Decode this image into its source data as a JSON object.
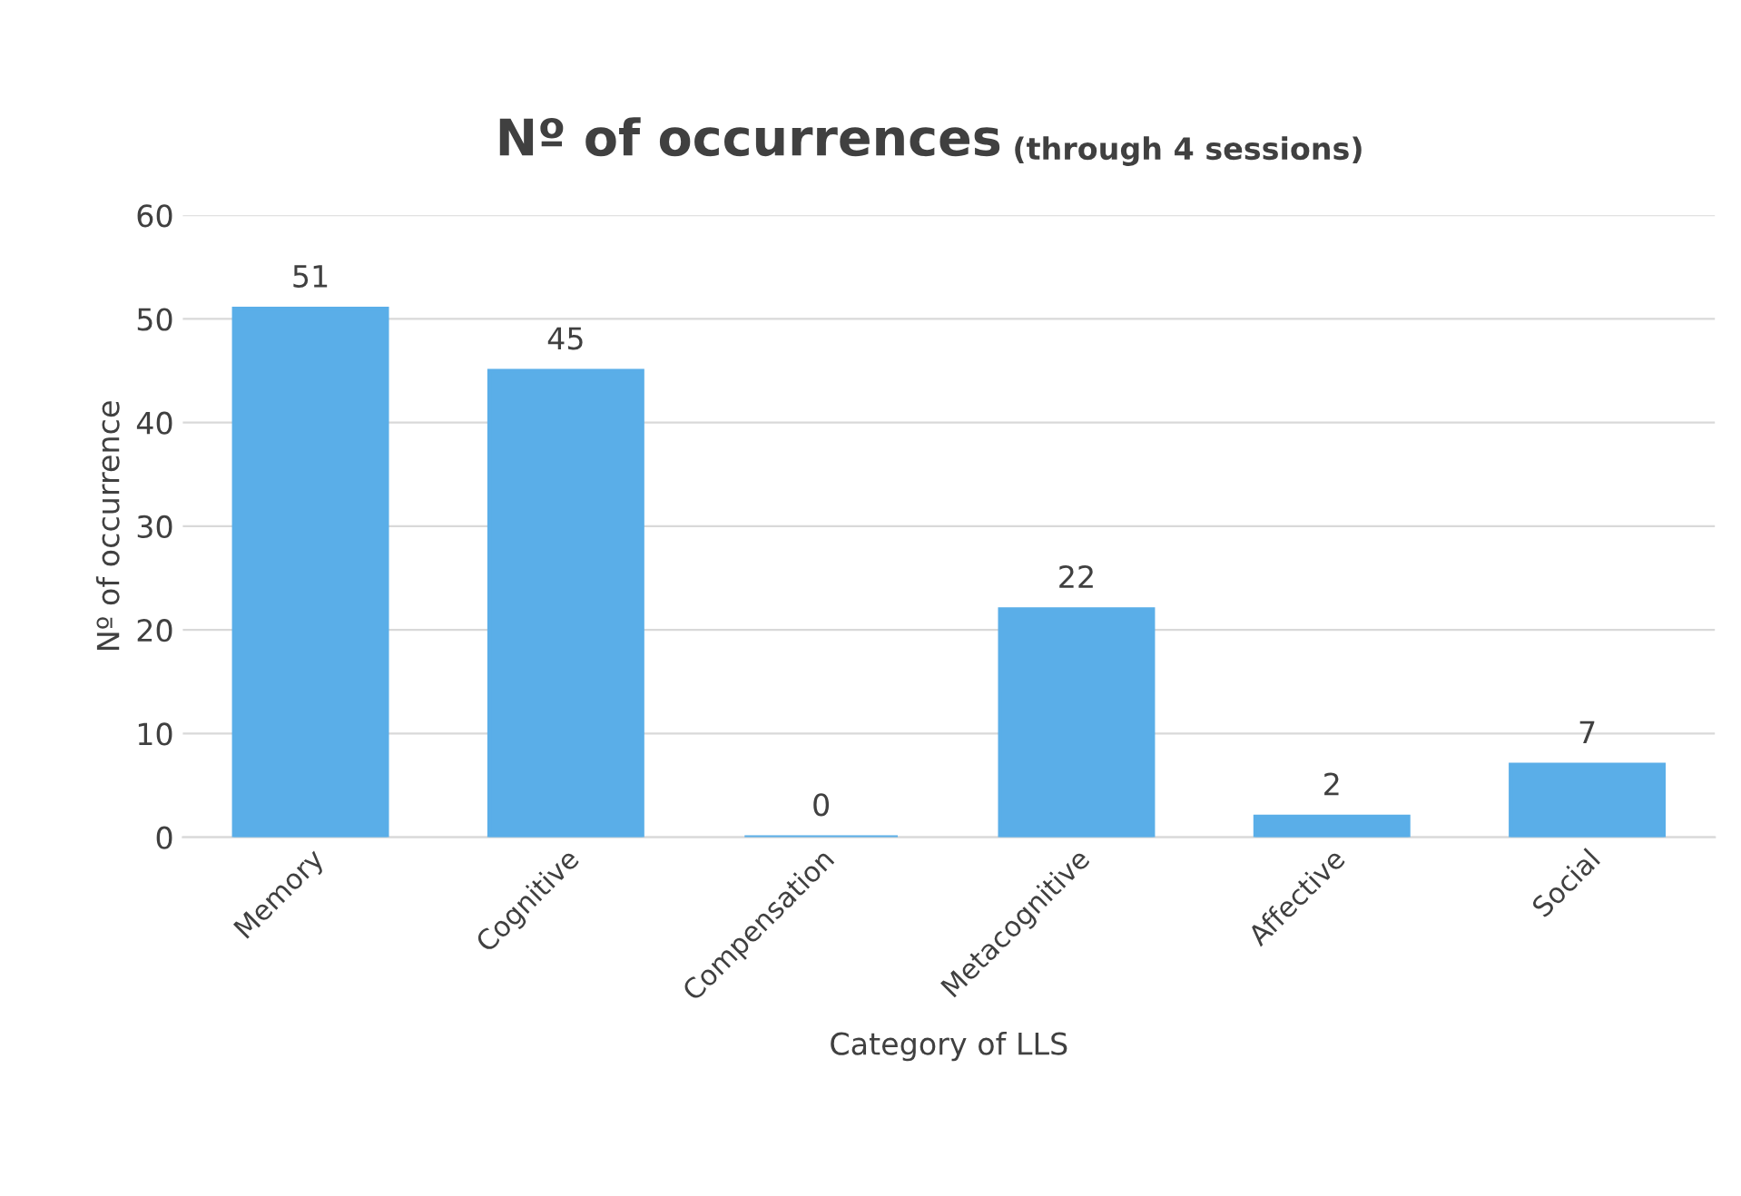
{
  "chart_data": {
    "type": "bar",
    "title": "Nº of occurrences",
    "subtitle": "(through 4 sessions)",
    "xlabel": "Category of LLS",
    "ylabel": "Nº of occurrence",
    "categories": [
      "Memory",
      "Cognitive",
      "Compensation",
      "Metacognitive",
      "Affective",
      "Social"
    ],
    "values": [
      51,
      45,
      0,
      22,
      2,
      7
    ],
    "color": "#5aaee8",
    "ylim": [
      0,
      60
    ],
    "yticks": [
      0,
      10,
      20,
      30,
      40,
      50,
      60
    ],
    "grid": "y",
    "data_labels": true
  }
}
